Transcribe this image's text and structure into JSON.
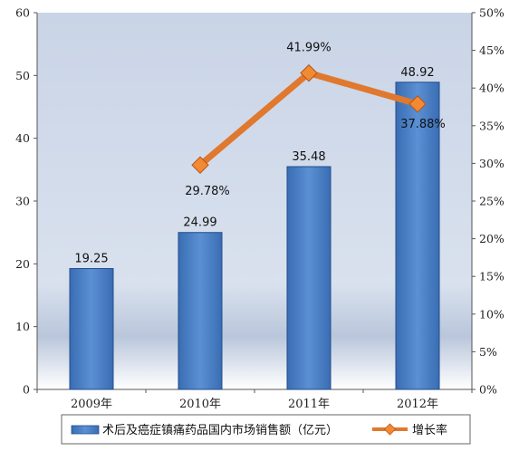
{
  "chart_data": {
    "type": "bar",
    "categories": [
      "2009年",
      "2010年",
      "2011年",
      "2012年"
    ],
    "series": [
      {
        "name": "术后及癌症镇痛药品国内市场销售额（亿元）",
        "type": "bar",
        "axis": "left",
        "values": [
          19.25,
          24.99,
          35.48,
          48.92
        ],
        "labels": [
          "19.25",
          "24.99",
          "35.48",
          "48.92"
        ]
      },
      {
        "name": "增长率",
        "type": "line",
        "axis": "right",
        "values": [
          null,
          29.78,
          41.99,
          37.88
        ],
        "labels": [
          "",
          "29.78%",
          "41.99%",
          "37.88%"
        ]
      }
    ],
    "ylim_left": [
      0,
      60
    ],
    "yticks_left": [
      "0",
      "10",
      "20",
      "30",
      "40",
      "50",
      "60"
    ],
    "ylim_right": [
      0,
      50
    ],
    "yticks_right": [
      "0%",
      "5%",
      "10%",
      "15%",
      "20%",
      "25%",
      "30%",
      "35%",
      "40%",
      "45%",
      "50%"
    ],
    "legend_position": "bottom",
    "grid": false,
    "colors": {
      "bar": "#4a7ec3",
      "bar_edge": "#1f4e8c",
      "line": "#e0782e",
      "marker": "#f28a33"
    }
  }
}
